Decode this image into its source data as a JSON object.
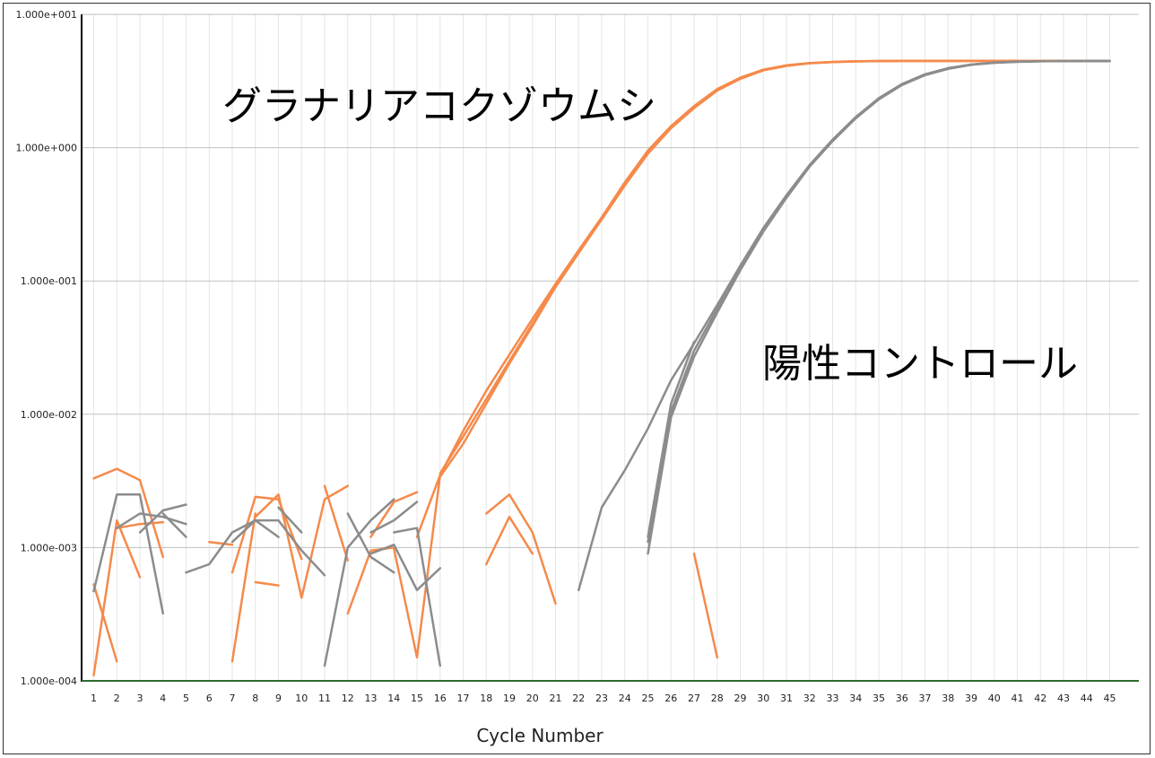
{
  "chart_data": {
    "type": "line",
    "xlabel": "Cycle Number",
    "ylabel": "",
    "yscale": "log",
    "ylim": [
      0.0001,
      10
    ],
    "xlim": [
      1,
      45
    ],
    "y_tick_labels": [
      "1.000e+001",
      "1.000e+000",
      "1.000e-001",
      "1.000e-002",
      "1.000e-003",
      "1.000e-004"
    ],
    "y_tick_values": [
      10,
      1,
      0.1,
      0.01,
      0.001,
      0.0001
    ],
    "x_tick_labels": [
      "1",
      "2",
      "3",
      "4",
      "5",
      "6",
      "7",
      "8",
      "9",
      "10",
      "11",
      "12",
      "13",
      "14",
      "15",
      "16",
      "17",
      "18",
      "19",
      "20",
      "21",
      "22",
      "23",
      "24",
      "25",
      "26",
      "27",
      "28",
      "29",
      "30",
      "31",
      "32",
      "33",
      "34",
      "35",
      "36",
      "37",
      "38",
      "39",
      "40",
      "41",
      "42",
      "43",
      "44",
      "45"
    ],
    "grid": "horizontal major, vertical minor per cycle",
    "threshold": 0.0001,
    "annotations": [
      {
        "text": "グラナリアコクゾウムシ",
        "series": "orange"
      },
      {
        "text": "陽性コントロール",
        "series": "gray"
      }
    ],
    "colors": {
      "orange": "#f58a4b",
      "gray": "#8c8c8c",
      "baseline": "#2e6b30",
      "grid_major": "#c0c0c0",
      "grid_minor": "#e6e6e6"
    },
    "series": [
      {
        "color": "orange",
        "x": [
          16,
          17,
          18,
          19,
          20,
          21,
          22,
          23,
          24,
          25,
          26,
          27,
          28,
          29,
          30,
          31,
          32,
          33,
          34,
          35,
          36,
          37,
          38,
          39,
          40,
          41,
          42,
          43,
          44,
          45
        ],
        "y": [
          0.0035,
          0.0075,
          0.015,
          0.028,
          0.052,
          0.095,
          0.17,
          0.3,
          0.55,
          0.95,
          1.45,
          2.05,
          2.75,
          3.35,
          3.85,
          4.15,
          4.32,
          4.4,
          4.45,
          4.47,
          4.48,
          4.48,
          4.48,
          4.48,
          4.48,
          4.48,
          4.48,
          4.48,
          4.48,
          4.48
        ]
      },
      {
        "color": "orange",
        "x": [
          16,
          17,
          18,
          19,
          20,
          21,
          22,
          23,
          24,
          25,
          26,
          27,
          28,
          29,
          30,
          31,
          32,
          33,
          34,
          35,
          36,
          37,
          38,
          39,
          40,
          41,
          42,
          43,
          44,
          45
        ],
        "y": [
          0.0036,
          0.0068,
          0.013,
          0.025,
          0.048,
          0.092,
          0.165,
          0.29,
          0.53,
          0.92,
          1.42,
          2.0,
          2.7,
          3.3,
          3.82,
          4.12,
          4.3,
          4.39,
          4.44,
          4.46,
          4.47,
          4.47,
          4.47,
          4.47,
          4.47,
          4.47,
          4.47,
          4.47,
          4.47,
          4.47
        ]
      },
      {
        "color": "orange",
        "x": [
          16,
          17,
          18,
          19,
          20,
          21,
          22,
          23,
          24,
          25,
          26,
          27,
          28,
          29,
          30,
          31,
          32,
          33,
          34,
          35,
          36,
          37,
          38,
          39,
          40,
          41,
          42,
          43,
          44,
          45
        ],
        "y": [
          0.0034,
          0.006,
          0.012,
          0.024,
          0.046,
          0.09,
          0.162,
          0.29,
          0.52,
          0.9,
          1.4,
          1.98,
          2.68,
          3.28,
          3.8,
          4.1,
          4.3,
          4.38,
          4.43,
          4.46,
          4.47,
          4.47,
          4.47,
          4.47,
          4.47,
          4.47,
          4.47,
          4.47,
          4.47,
          4.47
        ]
      },
      {
        "color": "gray",
        "x": [
          22,
          23,
          24,
          25,
          26,
          27,
          28,
          29,
          30,
          31,
          32,
          33,
          34,
          35,
          36,
          37,
          38,
          39,
          40,
          41,
          42,
          43,
          44,
          45
        ],
        "y": [
          0.00048,
          0.002,
          0.0038,
          0.0078,
          0.018,
          0.034,
          0.066,
          0.13,
          0.25,
          0.44,
          0.74,
          1.15,
          1.7,
          2.35,
          3.0,
          3.55,
          3.95,
          4.2,
          4.35,
          4.42,
          4.45,
          4.46,
          4.47,
          4.47
        ]
      },
      {
        "color": "gray",
        "x": [
          25,
          26,
          27,
          28,
          29,
          30,
          31,
          32,
          33,
          34,
          35,
          36,
          37,
          38,
          39,
          40,
          41,
          42,
          43,
          44,
          45
        ],
        "y": [
          0.0011,
          0.0105,
          0.03,
          0.062,
          0.125,
          0.24,
          0.43,
          0.73,
          1.14,
          1.68,
          2.33,
          2.98,
          3.53,
          3.93,
          4.2,
          4.34,
          4.41,
          4.45,
          4.46,
          4.47,
          4.47
        ]
      },
      {
        "color": "gray",
        "x": [
          25,
          26,
          27,
          28,
          29,
          30,
          31,
          32,
          33,
          34,
          35,
          36,
          37,
          38,
          39,
          40,
          41,
          42,
          43,
          44,
          45
        ],
        "y": [
          0.0009,
          0.0095,
          0.027,
          0.058,
          0.12,
          0.235,
          0.42,
          0.72,
          1.12,
          1.66,
          2.3,
          2.95,
          3.5,
          3.9,
          4.18,
          4.33,
          4.4,
          4.44,
          4.46,
          4.47,
          4.47
        ]
      },
      {
        "color": "gray",
        "x": [
          25,
          26,
          27
        ],
        "y": [
          0.0012,
          0.012,
          0.035
        ]
      },
      {
        "color": "orange",
        "x": [
          1,
          2,
          3
        ],
        "y": [
          0.0033,
          0.0039,
          0.0032
        ]
      },
      {
        "color": "orange",
        "x": [
          3,
          4
        ],
        "y": [
          0.0032,
          0.00085
        ]
      },
      {
        "color": "orange",
        "x": [
          1,
          2
        ],
        "y": [
          0.00053,
          0.00014
        ]
      },
      {
        "color": "orange",
        "x": [
          1,
          2,
          3
        ],
        "y": [
          0.00011,
          0.0016,
          0.0006
        ]
      },
      {
        "color": "orange",
        "x": [
          2,
          3,
          4
        ],
        "y": [
          0.0014,
          0.0015,
          0.00155
        ]
      },
      {
        "color": "orange",
        "x": [
          6,
          7
        ],
        "y": [
          0.0011,
          0.00105
        ]
      },
      {
        "color": "orange",
        "x": [
          7,
          8,
          9,
          10
        ],
        "y": [
          0.00065,
          0.0024,
          0.0023,
          0.00082
        ]
      },
      {
        "color": "orange",
        "x": [
          7,
          8
        ],
        "y": [
          0.00014,
          0.0018
        ]
      },
      {
        "color": "orange",
        "x": [
          8,
          9
        ],
        "y": [
          0.00055,
          0.00052
        ]
      },
      {
        "color": "orange",
        "x": [
          8,
          9,
          10,
          11,
          12
        ],
        "y": [
          0.0017,
          0.0025,
          0.00042,
          0.0023,
          0.0029
        ]
      },
      {
        "color": "orange",
        "x": [
          11,
          12
        ],
        "y": [
          0.0029,
          0.0008
        ]
      },
      {
        "color": "orange",
        "x": [
          12,
          13,
          14
        ],
        "y": [
          0.00032,
          0.00095,
          0.001
        ]
      },
      {
        "color": "orange",
        "x": [
          13,
          14,
          15
        ],
        "y": [
          0.0012,
          0.0022,
          0.0026
        ]
      },
      {
        "color": "orange",
        "x": [
          14,
          15,
          16
        ],
        "y": [
          0.00098,
          0.00015,
          0.0035
        ]
      },
      {
        "color": "orange",
        "x": [
          15,
          16
        ],
        "y": [
          0.0012,
          0.0035
        ]
      },
      {
        "color": "orange",
        "x": [
          18,
          19,
          20,
          21
        ],
        "y": [
          0.0018,
          0.0025,
          0.0013,
          0.00038
        ]
      },
      {
        "color": "orange",
        "x": [
          18,
          19,
          20
        ],
        "y": [
          0.00075,
          0.0017,
          0.0009
        ]
      },
      {
        "color": "orange",
        "x": [
          27,
          28
        ],
        "y": [
          0.0009,
          0.00015
        ]
      },
      {
        "color": "gray",
        "x": [
          1,
          2,
          3,
          4
        ],
        "y": [
          0.00047,
          0.0025,
          0.0025,
          0.00032
        ]
      },
      {
        "color": "gray",
        "x": [
          2,
          3,
          4,
          5
        ],
        "y": [
          0.0014,
          0.0018,
          0.0017,
          0.0015
        ]
      },
      {
        "color": "gray",
        "x": [
          3,
          4,
          5
        ],
        "y": [
          0.0013,
          0.0019,
          0.0021
        ]
      },
      {
        "color": "gray",
        "x": [
          4,
          5
        ],
        "y": [
          0.0018,
          0.0012
        ]
      },
      {
        "color": "gray",
        "x": [
          5,
          6,
          7,
          8
        ],
        "y": [
          0.00065,
          0.00075,
          0.0013,
          0.0016
        ]
      },
      {
        "color": "gray",
        "x": [
          7,
          8,
          9
        ],
        "y": [
          0.0011,
          0.0016,
          0.0012
        ]
      },
      {
        "color": "gray",
        "x": [
          8,
          9,
          10,
          11
        ],
        "y": [
          0.0016,
          0.0016,
          0.00095,
          0.00062
        ]
      },
      {
        "color": "gray",
        "x": [
          9,
          10
        ],
        "y": [
          0.002,
          0.0013
        ]
      },
      {
        "color": "gray",
        "x": [
          11,
          12,
          13,
          14
        ],
        "y": [
          0.00013,
          0.001,
          0.0016,
          0.0023
        ]
      },
      {
        "color": "gray",
        "x": [
          12,
          13,
          14
        ],
        "y": [
          0.0018,
          0.00085,
          0.00065
        ]
      },
      {
        "color": "gray",
        "x": [
          13,
          14,
          15,
          16
        ],
        "y": [
          0.0009,
          0.00105,
          0.00048,
          0.0007
        ]
      },
      {
        "color": "gray",
        "x": [
          13,
          14,
          15
        ],
        "y": [
          0.0013,
          0.0016,
          0.0022
        ]
      },
      {
        "color": "gray",
        "x": [
          14,
          15,
          16
        ],
        "y": [
          0.0013,
          0.0014,
          0.00013
        ]
      }
    ]
  }
}
